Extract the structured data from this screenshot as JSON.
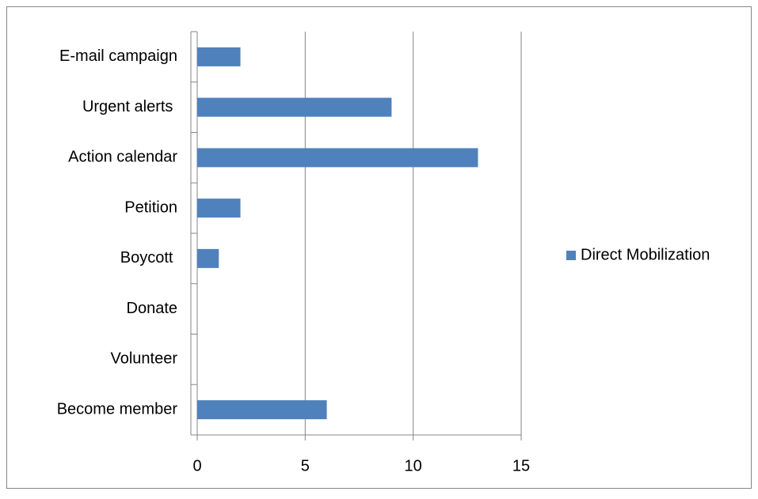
{
  "chart_data": {
    "type": "bar",
    "orientation": "horizontal",
    "categories": [
      "E-mail campaign",
      "Urgent alerts ",
      "Action calendar",
      "Petition",
      "Boycott ",
      "Donate",
      "Volunteer",
      "Become member"
    ],
    "series": [
      {
        "name": "Direct Mobilization",
        "color": "#4f81bd",
        "values": [
          2,
          9,
          13,
          2,
          1,
          0,
          0,
          6
        ]
      }
    ],
    "xlim": [
      0,
      15
    ],
    "xticks": [
      0,
      5,
      10,
      15
    ],
    "grid": true,
    "legend": "right"
  }
}
